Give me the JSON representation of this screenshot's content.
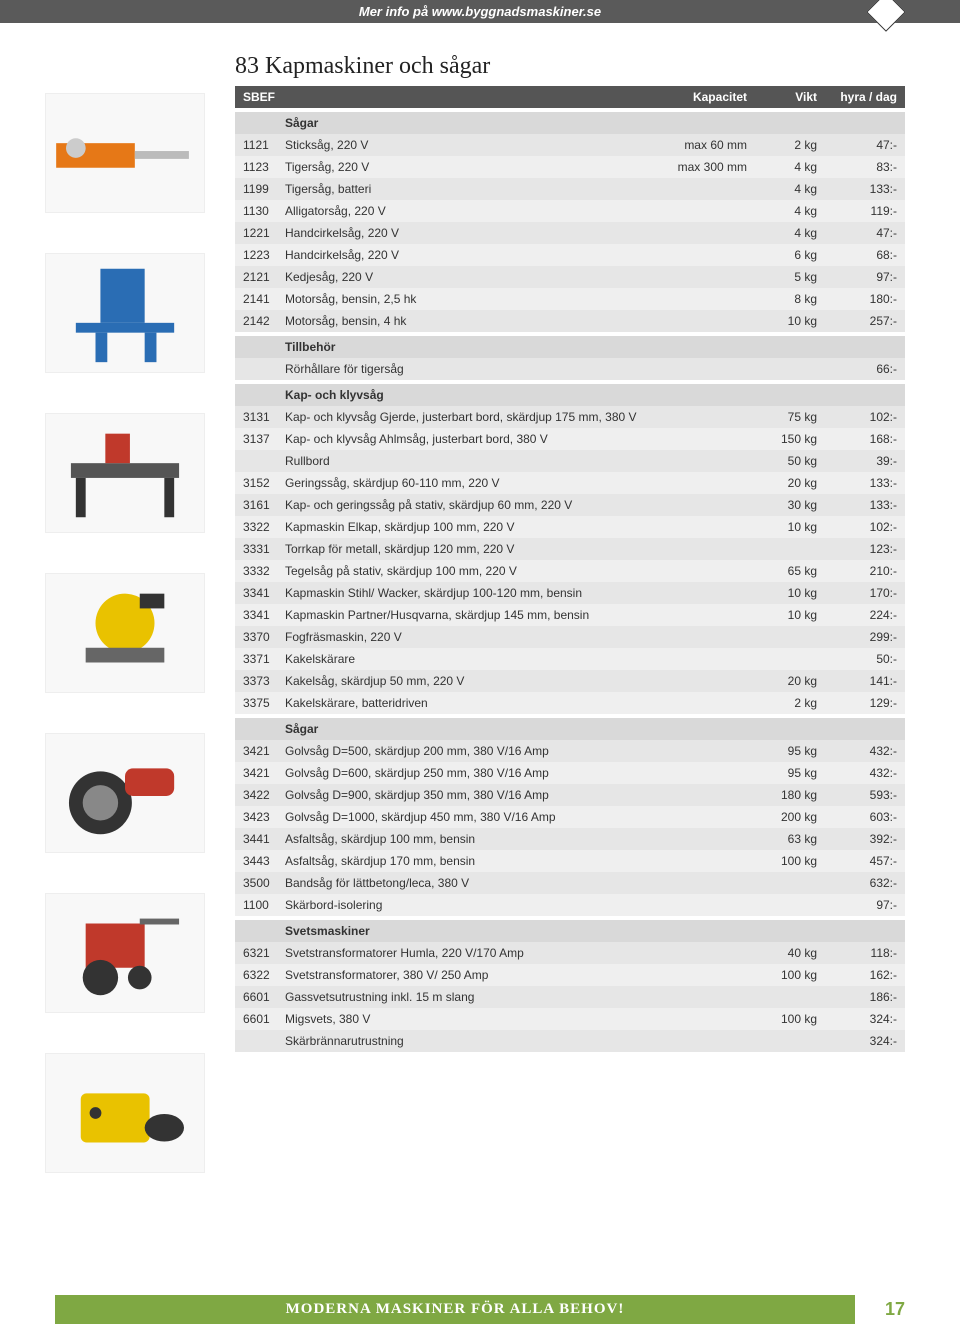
{
  "meta": {
    "top_link": "Mer info på www.byggnadsmaskiner.se",
    "page_title": "83 Kapmaskiner och sågar",
    "footer_text": "MODERNA MASKINER FÖR ALLA BEHOV!",
    "page_number": "17"
  },
  "columns": {
    "sbef": "SBEF",
    "desc": "",
    "cap": "Kapacitet",
    "wt": "Vikt",
    "price": "hyra / dag"
  },
  "colors": {
    "header_bg": "#555555",
    "header_fg": "#ffffff",
    "section_bg": "#d9d9d9",
    "row_bg_a": "#e6e6e6",
    "row_bg_b": "#efefef",
    "footer_bg": "#7fa843",
    "top_bg": "#5a5a5a"
  },
  "sections": [
    {
      "title": "Sågar",
      "rows": [
        {
          "sbef": "1121",
          "desc": "Sticksåg, 220 V",
          "cap": "max 60 mm",
          "wt": "2 kg",
          "price": "47:-"
        },
        {
          "sbef": "1123",
          "desc": "Tigersåg, 220 V",
          "cap": "max 300 mm",
          "wt": "4 kg",
          "price": "83:-"
        },
        {
          "sbef": "1199",
          "desc": "Tigersåg, batteri",
          "cap": "",
          "wt": "4 kg",
          "price": "133:-"
        },
        {
          "sbef": "1130",
          "desc": "Alligatorsåg, 220 V",
          "cap": "",
          "wt": "4 kg",
          "price": "119:-"
        },
        {
          "sbef": "1221",
          "desc": "Handcirkelsåg, 220 V",
          "cap": "",
          "wt": "4 kg",
          "price": "47:-"
        },
        {
          "sbef": "1223",
          "desc": "Handcirkelsåg, 220 V",
          "cap": "",
          "wt": "6 kg",
          "price": "68:-"
        },
        {
          "sbef": "2121",
          "desc": "Kedjesåg, 220 V",
          "cap": "",
          "wt": "5 kg",
          "price": "97:-"
        },
        {
          "sbef": "2141",
          "desc": "Motorsåg, bensin, 2,5 hk",
          "cap": "",
          "wt": "8 kg",
          "price": "180:-"
        },
        {
          "sbef": "2142",
          "desc": "Motorsåg, bensin, 4 hk",
          "cap": "",
          "wt": "10 kg",
          "price": "257:-"
        }
      ]
    },
    {
      "title": "Tillbehör",
      "rows": [
        {
          "sbef": "",
          "desc": "Rörhållare för tigersåg",
          "cap": "",
          "wt": "",
          "price": "66:-"
        }
      ]
    },
    {
      "title": "Kap- och klyvsåg",
      "rows": [
        {
          "sbef": "3131",
          "desc": "Kap- och klyvsåg Gjerde, justerbart bord, skärdjup 175 mm, 380 V",
          "cap": "",
          "wt": "75 kg",
          "price": "102:-"
        },
        {
          "sbef": "3137",
          "desc": "Kap- och klyvsåg Ahlmsåg, justerbart bord, 380 V",
          "cap": "",
          "wt": "150 kg",
          "price": "168:-"
        },
        {
          "sbef": "",
          "desc": "Rullbord",
          "cap": "",
          "wt": "50 kg",
          "price": "39:-"
        },
        {
          "sbef": "3152",
          "desc": "Geringssåg, skärdjup 60-110 mm, 220 V",
          "cap": "",
          "wt": "20 kg",
          "price": "133:-"
        },
        {
          "sbef": "3161",
          "desc": "Kap- och geringssåg på stativ, skärdjup 60 mm, 220 V",
          "cap": "",
          "wt": "30 kg",
          "price": "133:-"
        },
        {
          "sbef": "3322",
          "desc": "Kapmaskin Elkap, skärdjup 100 mm, 220 V",
          "cap": "",
          "wt": "10 kg",
          "price": "102:-"
        },
        {
          "sbef": "3331",
          "desc": "Torrkap för metall, skärdjup 120 mm, 220 V",
          "cap": "",
          "wt": "",
          "price": "123:-"
        },
        {
          "sbef": "3332",
          "desc": "Tegelsåg på stativ, skärdjup 100 mm, 220 V",
          "cap": "",
          "wt": "65 kg",
          "price": "210:-"
        },
        {
          "sbef": "3341",
          "desc": "Kapmaskin Stihl/ Wacker, skärdjup 100-120 mm, bensin",
          "cap": "",
          "wt": "10 kg",
          "price": "170:-"
        },
        {
          "sbef": "3341",
          "desc": "Kapmaskin Partner/Husqvarna, skärdjup 145 mm, bensin",
          "cap": "",
          "wt": "10 kg",
          "price": "224:-"
        },
        {
          "sbef": "3370",
          "desc": "Fogfräsmaskin, 220 V",
          "cap": "",
          "wt": "",
          "price": "299:-"
        },
        {
          "sbef": "3371",
          "desc": "Kakelskärare",
          "cap": "",
          "wt": "",
          "price": "50:-"
        },
        {
          "sbef": "3373",
          "desc": "Kakelsåg, skärdjup 50 mm, 220 V",
          "cap": "",
          "wt": "20 kg",
          "price": "141:-"
        },
        {
          "sbef": "3375",
          "desc": "Kakelskärare, batteridriven",
          "cap": "",
          "wt": "2 kg",
          "price": "129:-"
        }
      ]
    },
    {
      "title": "Sågar",
      "rows": [
        {
          "sbef": "3421",
          "desc": "Golvsåg D=500,  skärdjup 200 mm, 380 V/16 Amp",
          "cap": "",
          "wt": "95 kg",
          "price": "432:-"
        },
        {
          "sbef": "3421",
          "desc": "Golvsåg D=600,  skärdjup 250 mm, 380 V/16 Amp",
          "cap": "",
          "wt": "95 kg",
          "price": "432:-"
        },
        {
          "sbef": "3422",
          "desc": "Golvsåg D=900,  skärdjup 350 mm, 380 V/16 Amp",
          "cap": "",
          "wt": "180 kg",
          "price": "593:-"
        },
        {
          "sbef": "3423",
          "desc": "Golvsåg D=1000, skärdjup 450 mm, 380 V/16 Amp",
          "cap": "",
          "wt": "200 kg",
          "price": "603:-"
        },
        {
          "sbef": "3441",
          "desc": "Asfaltsåg, skärdjup 100 mm, bensin",
          "cap": "",
          "wt": "63 kg",
          "price": "392:-"
        },
        {
          "sbef": "3443",
          "desc": "Asfaltsåg, skärdjup 170 mm, bensin",
          "cap": "",
          "wt": "100 kg",
          "price": "457:-"
        },
        {
          "sbef": "3500",
          "desc": "Bandsåg för lättbetong/leca, 380 V",
          "cap": "",
          "wt": "",
          "price": "632:-"
        },
        {
          "sbef": "1100",
          "desc": "Skärbord-isolering",
          "cap": "",
          "wt": "",
          "price": "97:-"
        }
      ]
    },
    {
      "title": "Svetsmaskiner",
      "rows": [
        {
          "sbef": "6321",
          "desc": "Svetstransformatorer Humla, 220 V/170 Amp",
          "cap": "",
          "wt": "40 kg",
          "price": "118:-"
        },
        {
          "sbef": "6322",
          "desc": "Svetstransformatorer, 380 V/ 250 Amp",
          "cap": "",
          "wt": "100 kg",
          "price": "162:-"
        },
        {
          "sbef": "6601",
          "desc": "Gassvetsutrustning inkl. 15 m slang",
          "cap": "",
          "wt": "",
          "price": "186:-"
        },
        {
          "sbef": "6601",
          "desc": "Migsvets, 380 V",
          "cap": "",
          "wt": "100 kg",
          "price": "324:-"
        },
        {
          "sbef": "",
          "desc": "Skärbrännarutrustning",
          "cap": "",
          "wt": "",
          "price": "324:-"
        }
      ]
    }
  ]
}
